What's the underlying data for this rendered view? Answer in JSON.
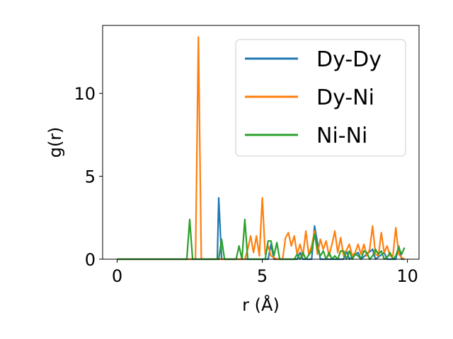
{
  "chart_data": {
    "type": "line",
    "xlabel": "r (Å)",
    "ylabel": "g(r)",
    "xlim": [
      -0.5,
      10.4
    ],
    "ylim": [
      0,
      14.1
    ],
    "xticks": [
      0,
      5,
      10
    ],
    "yticks": [
      0,
      5,
      10
    ],
    "grid": false,
    "legend": "top-right",
    "series": [
      {
        "name": "Dy-Dy",
        "color": "#1f77b4",
        "points": [
          [
            0,
            0
          ],
          [
            3.45,
            0
          ],
          [
            3.5,
            3.7
          ],
          [
            3.6,
            0
          ],
          [
            5.2,
            0
          ],
          [
            5.3,
            0.9
          ],
          [
            5.4,
            0
          ],
          [
            6.2,
            0
          ],
          [
            6.3,
            0.4
          ],
          [
            6.4,
            0
          ],
          [
            6.7,
            0
          ],
          [
            6.8,
            2.0
          ],
          [
            6.9,
            1.0
          ],
          [
            7.0,
            0
          ],
          [
            7.8,
            0
          ],
          [
            7.9,
            0.5
          ],
          [
            8.0,
            0
          ],
          [
            8.3,
            0.4
          ],
          [
            8.4,
            0
          ],
          [
            8.8,
            0.6
          ],
          [
            8.9,
            0
          ],
          [
            9.2,
            0.4
          ],
          [
            9.3,
            0
          ],
          [
            9.6,
            0
          ],
          [
            9.7,
            0.8
          ],
          [
            9.8,
            0
          ],
          [
            9.9,
            0
          ]
        ]
      },
      {
        "name": "Dy-Ni",
        "color": "#ff7f0e",
        "points": [
          [
            0,
            0
          ],
          [
            2.7,
            0
          ],
          [
            2.8,
            13.4
          ],
          [
            2.9,
            0
          ],
          [
            4.4,
            0
          ],
          [
            4.5,
            0.6
          ],
          [
            4.6,
            1.4
          ],
          [
            4.7,
            0.4
          ],
          [
            4.8,
            1.4
          ],
          [
            4.9,
            0.2
          ],
          [
            5.0,
            3.7
          ],
          [
            5.1,
            0.3
          ],
          [
            5.2,
            0.8
          ],
          [
            5.3,
            0.2
          ],
          [
            5.5,
            0
          ],
          [
            5.7,
            0
          ],
          [
            5.8,
            1.3
          ],
          [
            5.9,
            1.6
          ],
          [
            6.0,
            0.8
          ],
          [
            6.1,
            1.4
          ],
          [
            6.2,
            0.3
          ],
          [
            6.3,
            0.9
          ],
          [
            6.4,
            0.2
          ],
          [
            6.5,
            1.7
          ],
          [
            6.6,
            0.3
          ],
          [
            6.7,
            0.8
          ],
          [
            6.8,
            1.7
          ],
          [
            6.9,
            0.3
          ],
          [
            7.0,
            1.2
          ],
          [
            7.1,
            0.6
          ],
          [
            7.2,
            1.1
          ],
          [
            7.3,
            0.2
          ],
          [
            7.4,
            0.9
          ],
          [
            7.5,
            1.7
          ],
          [
            7.6,
            0.4
          ],
          [
            7.7,
            1.3
          ],
          [
            7.8,
            0.2
          ],
          [
            8.0,
            0.9
          ],
          [
            8.1,
            0.2
          ],
          [
            8.2,
            0.4
          ],
          [
            8.3,
            0.9
          ],
          [
            8.4,
            0.3
          ],
          [
            8.5,
            0.9
          ],
          [
            8.6,
            0.2
          ],
          [
            8.7,
            0.6
          ],
          [
            8.8,
            2.0
          ],
          [
            8.9,
            0.3
          ],
          [
            9.0,
            0.2
          ],
          [
            9.1,
            1.6
          ],
          [
            9.2,
            0.4
          ],
          [
            9.3,
            0.8
          ],
          [
            9.4,
            0.2
          ],
          [
            9.5,
            0.2
          ],
          [
            9.6,
            1.9
          ],
          [
            9.7,
            0.3
          ],
          [
            9.8,
            0.1
          ],
          [
            9.9,
            0
          ]
        ]
      },
      {
        "name": "Ni-Ni",
        "color": "#2ca02c",
        "points": [
          [
            0,
            0
          ],
          [
            2.4,
            0
          ],
          [
            2.5,
            2.4
          ],
          [
            2.6,
            0
          ],
          [
            3.5,
            0
          ],
          [
            3.6,
            1.2
          ],
          [
            3.7,
            0
          ],
          [
            4.1,
            0
          ],
          [
            4.2,
            0.8
          ],
          [
            4.3,
            0
          ],
          [
            4.4,
            2.4
          ],
          [
            4.5,
            0
          ],
          [
            5.1,
            0
          ],
          [
            5.2,
            1.1
          ],
          [
            5.3,
            1.1
          ],
          [
            5.4,
            0.2
          ],
          [
            5.5,
            1.0
          ],
          [
            5.6,
            0
          ],
          [
            6.1,
            0
          ],
          [
            6.2,
            0.3
          ],
          [
            6.3,
            0
          ],
          [
            6.4,
            0.4
          ],
          [
            6.5,
            0
          ],
          [
            6.7,
            0.5
          ],
          [
            6.8,
            1.5
          ],
          [
            6.9,
            0.6
          ],
          [
            7.0,
            0.2
          ],
          [
            7.1,
            0.5
          ],
          [
            7.2,
            0
          ],
          [
            7.3,
            0.4
          ],
          [
            7.4,
            0
          ],
          [
            7.5,
            0.2
          ],
          [
            7.6,
            0
          ],
          [
            7.7,
            0.5
          ],
          [
            7.8,
            0.5
          ],
          [
            7.9,
            0
          ],
          [
            8.0,
            0.5
          ],
          [
            8.1,
            0
          ],
          [
            8.2,
            0.3
          ],
          [
            8.3,
            0.2
          ],
          [
            8.4,
            0
          ],
          [
            8.5,
            0.5
          ],
          [
            8.6,
            0.4
          ],
          [
            8.7,
            0
          ],
          [
            8.8,
            0.2
          ],
          [
            8.9,
            0.6
          ],
          [
            9.0,
            0.3
          ],
          [
            9.1,
            0.5
          ],
          [
            9.2,
            0
          ],
          [
            9.3,
            0.1
          ],
          [
            9.4,
            0.4
          ],
          [
            9.5,
            0
          ],
          [
            9.6,
            0.2
          ],
          [
            9.7,
            0.7
          ],
          [
            9.8,
            0.3
          ],
          [
            9.9,
            0.7
          ]
        ]
      }
    ]
  }
}
